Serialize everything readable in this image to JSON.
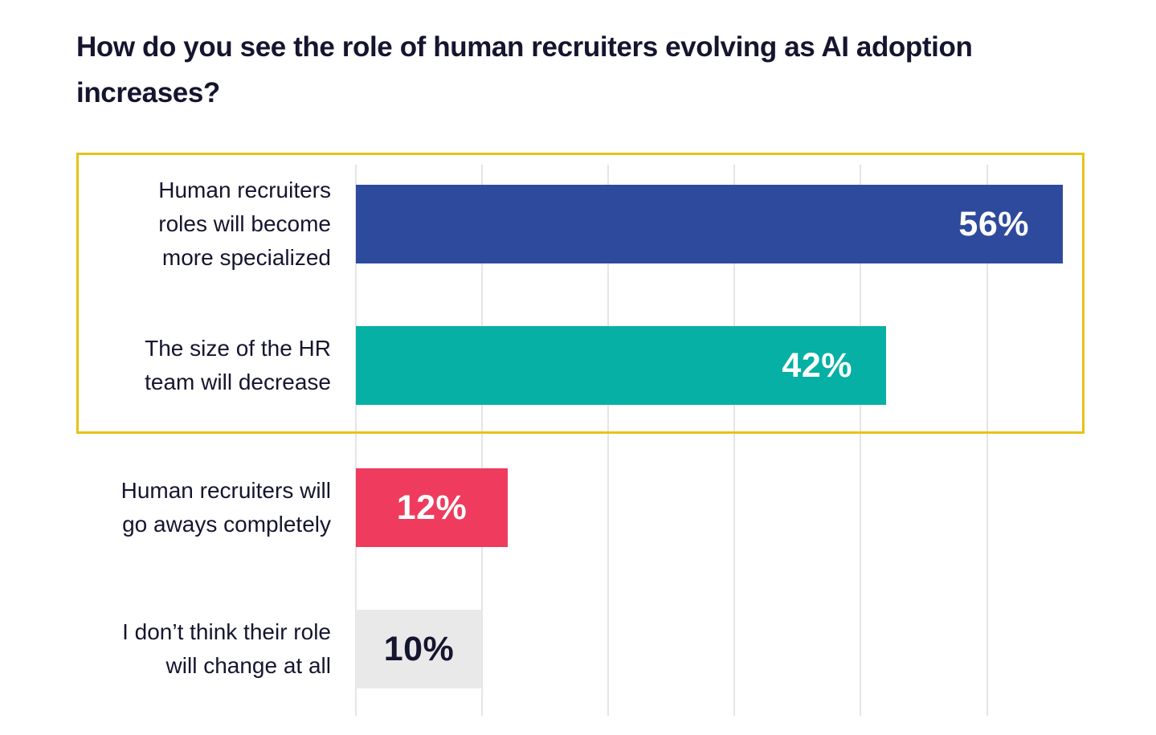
{
  "chart_data": {
    "type": "bar",
    "orientation": "horizontal",
    "title": "How do you see the role of human recruiters evolving as AI adoption increases?",
    "categories": [
      "Human recruiters roles will become more specialized",
      "The size of the HR team will decrease",
      "Human recruiters will go aways completely",
      "I don’t think their role will change at all"
    ],
    "category_lines": [
      [
        "Human recruiters",
        "roles will become",
        "more specialized"
      ],
      [
        "The size of the HR",
        "team will decrease"
      ],
      [
        "Human recruiters will",
        "go aways completely"
      ],
      [
        "I don’t think their role",
        "will change at all"
      ]
    ],
    "values": [
      56,
      42,
      12,
      10
    ],
    "value_labels": [
      "56%",
      "42%",
      "12%",
      "10%"
    ],
    "bar_colors": [
      "#2e4a9d",
      "#06b0a4",
      "#ee3b5e",
      "#e9e9e9"
    ],
    "value_label_colors": [
      "#ffffff",
      "#ffffff",
      "#ffffff",
      "#15152f"
    ],
    "value_label_placement": [
      "inside-right",
      "inside-right",
      "center",
      "center"
    ],
    "xlabel": "",
    "ylabel": "",
    "xlim": [
      0,
      63.4
    ],
    "gridline_values": [
      0,
      10,
      20,
      30,
      40,
      50
    ],
    "grid": true,
    "legend": false,
    "highlight_box": {
      "rows": [
        0,
        1
      ],
      "border_color": "#e8c217"
    }
  },
  "colors": {
    "background": "#ffffff",
    "title_text": "#15152f",
    "label_text": "#15152f",
    "gridline": "#e5e5e5",
    "highlight_border": "#e8c217"
  }
}
